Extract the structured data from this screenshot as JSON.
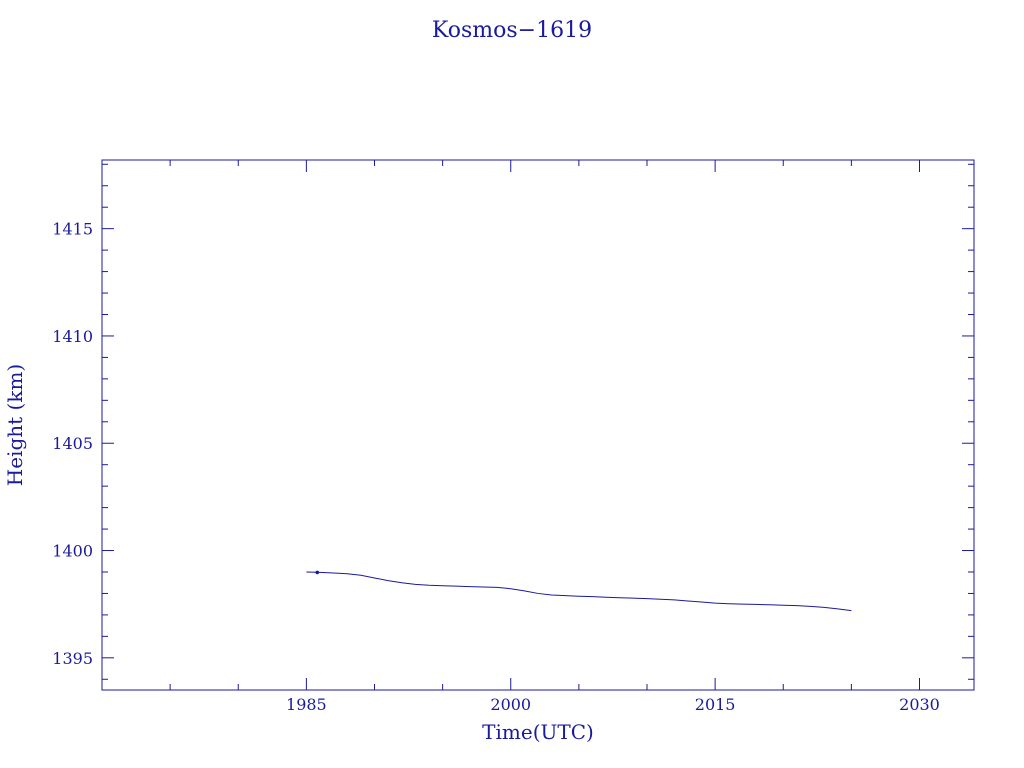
{
  "chart_data": {
    "type": "line",
    "title": "Kosmos−1619",
    "xlabel": "Time(UTC)",
    "ylabel": "Height  (km)",
    "xlim": [
      1970,
      2034
    ],
    "ylim": [
      1393.5,
      1418.2
    ],
    "x_ticks": [
      1985,
      2000,
      2015,
      2030
    ],
    "x_tick_labels": [
      "1985",
      "2000",
      "2015",
      "2030"
    ],
    "y_ticks": [
      1395,
      1400,
      1405,
      1410,
      1415
    ],
    "y_tick_labels": [
      "1395",
      "1400",
      "1405",
      "1410",
      "1415"
    ],
    "grid": false,
    "colors": {
      "axes": "#1a1a9c",
      "line": "#1a1a9c",
      "background": "#ffffff"
    },
    "series": [
      {
        "x": [
          1985.0,
          1986.0,
          1987.0,
          1988.0,
          1989.0,
          1990.0,
          1991.0,
          1992.0,
          1993.0,
          1994.0,
          1995.0,
          1996.0,
          1997.0,
          1998.0,
          1999.0,
          2000.0,
          2001.0,
          2002.0,
          2003.0,
          2004.0,
          2005.0,
          2006.0,
          2007.0,
          2008.0,
          2009.0,
          2010.0,
          2011.0,
          2012.0,
          2013.0,
          2014.0,
          2015.0,
          2016.0,
          2017.0,
          2018.0,
          2019.0,
          2020.0,
          2021.0,
          2022.0,
          2023.0,
          2024.0,
          2025.0
        ],
        "y": [
          1399.0,
          1398.98,
          1398.95,
          1398.92,
          1398.85,
          1398.72,
          1398.6,
          1398.5,
          1398.42,
          1398.38,
          1398.36,
          1398.34,
          1398.32,
          1398.3,
          1398.28,
          1398.22,
          1398.12,
          1398.0,
          1397.93,
          1397.9,
          1397.87,
          1397.85,
          1397.82,
          1397.8,
          1397.78,
          1397.76,
          1397.73,
          1397.7,
          1397.65,
          1397.6,
          1397.55,
          1397.52,
          1397.5,
          1397.49,
          1397.47,
          1397.45,
          1397.43,
          1397.4,
          1397.35,
          1397.28,
          1397.2
        ]
      }
    ],
    "markers": [
      {
        "x": 1985.8,
        "y": 1398.98
      }
    ]
  }
}
